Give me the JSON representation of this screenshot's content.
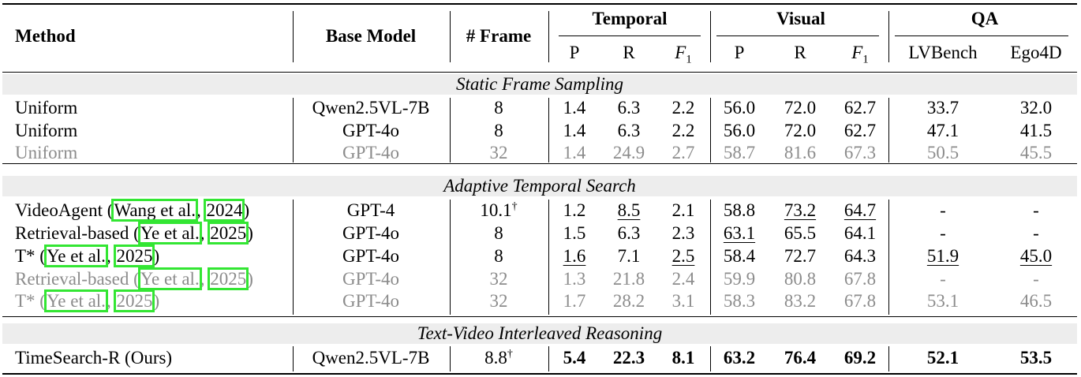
{
  "header": {
    "method": "Method",
    "base_model": "Base Model",
    "frame": "# Frame",
    "groups": {
      "temporal": "Temporal",
      "visual": "Visual",
      "qa": "QA"
    },
    "sub": {
      "p": "P",
      "r": "R",
      "f": "F",
      "f_sub": "1",
      "lvbench": "LVBench",
      "ego4d": "Ego4D"
    }
  },
  "sections": {
    "static": "Static Frame Sampling",
    "adaptive": "Adaptive Temporal Search",
    "interleaved": "Text-Video Interleaved Reasoning"
  },
  "rows": {
    "uniform1": {
      "method": "Uniform",
      "base": "Qwen2.5VL-7B",
      "frame": "8",
      "tp": "1.4",
      "tr": "6.3",
      "tf": "2.2",
      "vp": "56.0",
      "vr": "72.0",
      "vf": "62.7",
      "lv": "33.7",
      "ego": "32.0"
    },
    "uniform2": {
      "method": "Uniform",
      "base": "GPT-4o",
      "frame": "8",
      "tp": "1.4",
      "tr": "6.3",
      "tf": "2.2",
      "vp": "56.0",
      "vr": "72.0",
      "vf": "62.7",
      "lv": "47.1",
      "ego": "41.5"
    },
    "uniform3": {
      "method": "Uniform",
      "base": "GPT-4o",
      "frame": "32",
      "tp": "1.4",
      "tr": "24.9",
      "tf": "2.7",
      "vp": "58.7",
      "vr": "81.6",
      "vf": "67.3",
      "lv": "50.5",
      "ego": "45.5"
    },
    "videoagent": {
      "method": "VideoAgent (",
      "cite_author": "Wang et al.",
      "cite_sep": ",",
      "cite_year": "2024",
      "cite_close": ")",
      "base": "GPT-4",
      "frame": "10.1",
      "dagger": "†",
      "tp": "1.2",
      "tr": "8.5",
      "tf": "2.1",
      "vp": "58.8",
      "vr": "73.2",
      "vf": "64.7",
      "lv": "-",
      "ego": "-"
    },
    "retrieval1": {
      "method": "Retrieval-based (",
      "cite_author": "Ye et al.",
      "cite_sep": ",",
      "cite_year": "2025",
      "cite_close": ")",
      "base": "GPT-4o",
      "frame": "8",
      "tp": "1.5",
      "tr": "6.3",
      "tf": "2.3",
      "vp": "63.1",
      "vr": "65.5",
      "vf": "64.1",
      "lv": "-",
      "ego": "-"
    },
    "tstar1": {
      "method": "T* (",
      "cite_author": "Ye et al.",
      "cite_sep": ",",
      "cite_year": "2025",
      "cite_close": ")",
      "base": "GPT-4o",
      "frame": "8",
      "tp": "1.6",
      "tr": "7.1",
      "tf": "2.5",
      "vp": "58.4",
      "vr": "72.7",
      "vf": "64.3",
      "lv": "51.9",
      "ego": "45.0"
    },
    "retrieval2": {
      "method": "Retrieval-based (",
      "cite_author": "Ye et al.",
      "cite_sep": ",",
      "cite_year": "2025",
      "cite_close": ")",
      "base": "GPT-4o",
      "frame": "32",
      "tp": "1.3",
      "tr": "21.8",
      "tf": "2.4",
      "vp": "59.9",
      "vr": "80.8",
      "vf": "67.8",
      "lv": "-",
      "ego": "-"
    },
    "tstar2": {
      "method": "T* (",
      "cite_author": "Ye et al.",
      "cite_sep": ",",
      "cite_year": "2025",
      "cite_close": ")",
      "base": "GPT-4o",
      "frame": "32",
      "tp": "1.7",
      "tr": "28.2",
      "tf": "3.1",
      "vp": "58.3",
      "vr": "83.2",
      "vf": "67.8",
      "lv": "53.1",
      "ego": "46.5"
    },
    "timesearch": {
      "method": "TimeSearch-R (Ours)",
      "base": "Qwen2.5VL-7B",
      "frame": "8.8",
      "dagger": "†",
      "tp": "5.4",
      "tr": "22.3",
      "tf": "8.1",
      "vp": "63.2",
      "vr": "76.4",
      "vf": "69.2",
      "lv": "52.1",
      "ego": "53.5"
    }
  },
  "colors": {
    "rule": "#000000",
    "band": "#ededed",
    "gray_text": "#8c8c8c",
    "citation_box": "#33e633"
  }
}
